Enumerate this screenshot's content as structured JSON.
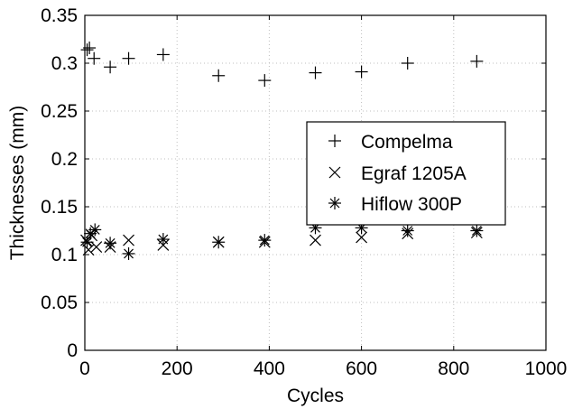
{
  "chart_data": {
    "type": "scatter",
    "title": "",
    "xlabel": "Cycles",
    "ylabel": "Thicknesses (mm)",
    "xlim": [
      0,
      1000
    ],
    "ylim": [
      0,
      0.35
    ],
    "xticks": [
      0,
      200,
      400,
      600,
      800,
      1000
    ],
    "xtick_labels": [
      "0",
      "200",
      "400",
      "600",
      "800",
      "1000"
    ],
    "yticks": [
      0,
      0.05,
      0.1,
      0.15,
      0.2,
      0.25,
      0.3,
      0.35
    ],
    "ytick_labels": [
      "0",
      "0.05",
      "0.1",
      "0.15",
      "0.2",
      "0.25",
      "0.3",
      "0.35"
    ],
    "grid": true,
    "legend_position": "right-center",
    "series": [
      {
        "name": "Compelma",
        "marker": "plus",
        "x": [
          5,
          10,
          20,
          55,
          95,
          170,
          290,
          390,
          500,
          600,
          700,
          850
        ],
        "y": [
          0.314,
          0.316,
          0.305,
          0.296,
          0.305,
          0.309,
          0.287,
          0.282,
          0.29,
          0.291,
          0.3,
          0.302
        ]
      },
      {
        "name": "Egraf 1205A",
        "marker": "x",
        "x": [
          3,
          8,
          15,
          25,
          55,
          95,
          170,
          290,
          390,
          500,
          600,
          700,
          850
        ],
        "y": [
          0.115,
          0.105,
          0.12,
          0.108,
          0.108,
          0.115,
          0.11,
          0.113,
          0.113,
          0.115,
          0.118,
          0.122,
          0.123
        ]
      },
      {
        "name": "Hiflow 300P",
        "marker": "asterisk",
        "x": [
          5,
          12,
          22,
          55,
          95,
          170,
          290,
          390,
          500,
          600,
          700,
          850
        ],
        "y": [
          0.113,
          0.122,
          0.126,
          0.112,
          0.101,
          0.116,
          0.113,
          0.115,
          0.128,
          0.128,
          0.125,
          0.125
        ]
      }
    ]
  }
}
